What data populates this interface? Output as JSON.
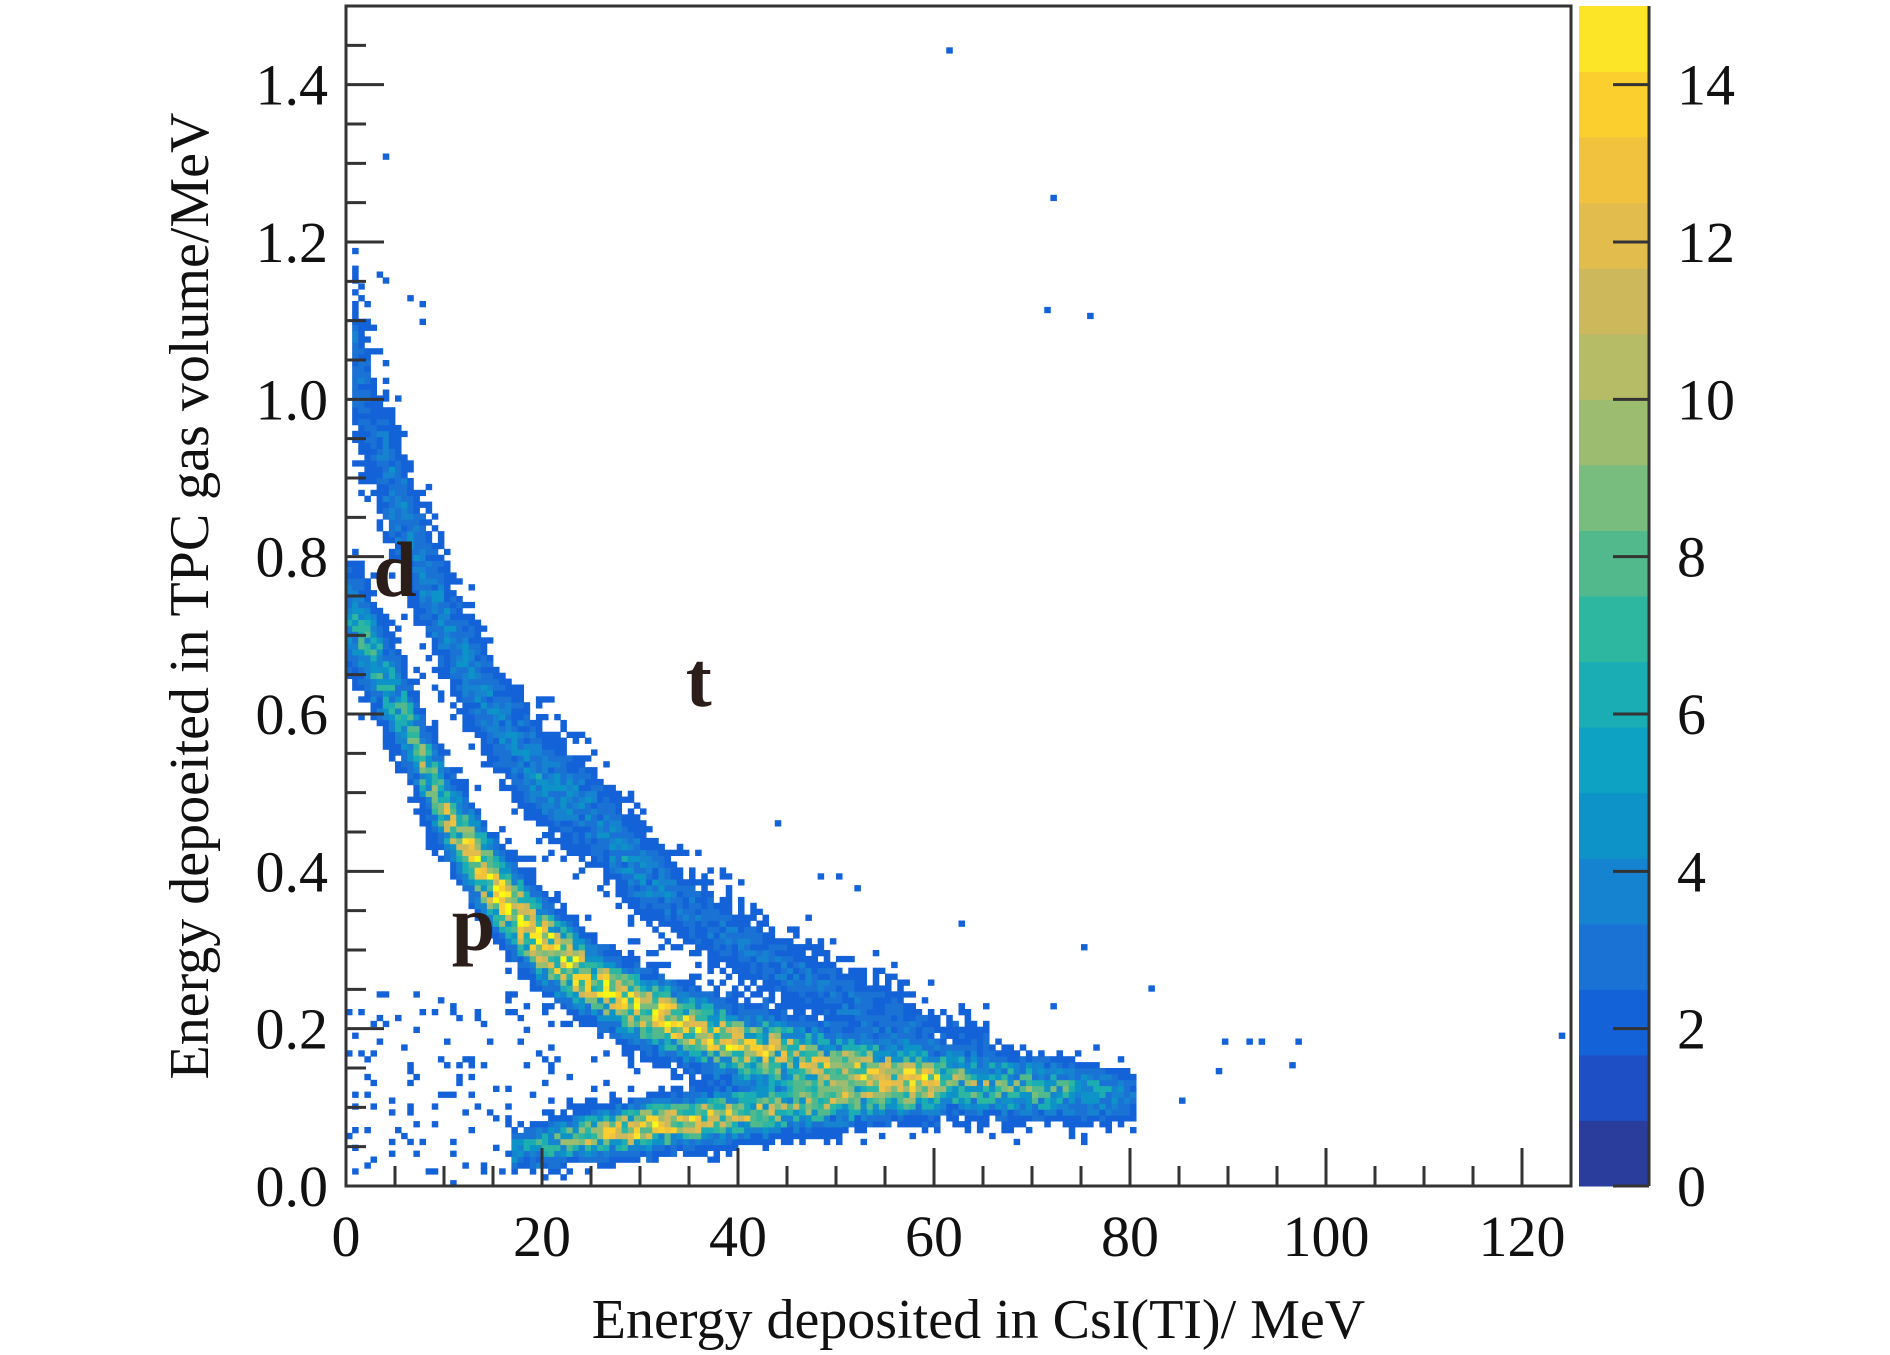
{
  "chart_data": {
    "type": "heatmap",
    "subtype": "2D histogram (dE-E particle identification)",
    "title": "",
    "xlabel": "Energy deposited in CsI(TI)/ MeV",
    "ylabel": "Energy depoeited in TPC gas volume/MeV",
    "xlim": [
      0,
      125
    ],
    "ylim": [
      0,
      1.5
    ],
    "xbins": 200,
    "ybins": 200,
    "x_ticks": [
      0,
      20,
      40,
      60,
      80,
      100,
      120
    ],
    "x_tick_labels": [
      "0",
      "20",
      "40",
      "60",
      "80",
      "100",
      "120"
    ],
    "x_minor_step": 5,
    "y_ticks": [
      0.0,
      0.2,
      0.4,
      0.6,
      0.8,
      1.0,
      1.2,
      1.4
    ],
    "y_tick_labels": [
      "0.0",
      "0.2",
      "0.4",
      "0.6",
      "0.8",
      "1.0",
      "1.2",
      "1.4"
    ],
    "y_minor_step": 0.05,
    "grid": false,
    "colorbar": {
      "range": [
        0,
        15
      ],
      "ticks": [
        0,
        2,
        4,
        6,
        8,
        10,
        12,
        14
      ],
      "tick_labels": [
        "0",
        "2",
        "4",
        "6",
        "8",
        "10",
        "12",
        "14"
      ],
      "placement": "right",
      "palette": [
        "#2a3c9c",
        "#1e4fc4",
        "#1462d8",
        "#1a73d4",
        "#1683d0",
        "#0d93c8",
        "#0da2c4",
        "#1aadb4",
        "#2db6a0",
        "#52b98c",
        "#78bd7e",
        "#9cbd70",
        "#b6bc66",
        "#cdb95c",
        "#e2bd4e",
        "#f0c23e",
        "#fbd02e",
        "#fbe526",
        "#f8fa14"
      ]
    },
    "annotations": [
      {
        "text": "d",
        "x": 5,
        "y": 0.75
      },
      {
        "text": "t",
        "x": 36,
        "y": 0.61
      },
      {
        "text": "p",
        "x": 13,
        "y": 0.3
      }
    ],
    "bands": [
      {
        "name": "p",
        "ridge_x": [
          0.5,
          2,
          5,
          10,
          15,
          20,
          25,
          30,
          40,
          50,
          60,
          70,
          78,
          80
        ],
        "ridge_y": [
          0.72,
          0.69,
          0.62,
          0.48,
          0.38,
          0.31,
          0.26,
          0.225,
          0.18,
          0.155,
          0.137,
          0.125,
          0.115,
          0.113
        ],
        "half_width_y": [
          0.04,
          0.04,
          0.035,
          0.03,
          0.03,
          0.028,
          0.026,
          0.025,
          0.025,
          0.024,
          0.024,
          0.022,
          0.02,
          0.02
        ],
        "peak_count": [
          4,
          5,
          5,
          8,
          11,
          12,
          11,
          11,
          10,
          8,
          7,
          6,
          4,
          2
        ]
      },
      {
        "name": "d",
        "ridge_x": [
          1,
          3,
          5,
          8,
          10,
          15,
          20,
          25,
          30,
          35,
          40,
          45,
          50,
          55,
          60,
          65
        ],
        "ridge_y": [
          1.05,
          0.95,
          0.88,
          0.78,
          0.72,
          0.6,
          0.52,
          0.47,
          0.4,
          0.35,
          0.31,
          0.275,
          0.245,
          0.22,
          0.2,
          0.185
        ],
        "half_width_y": [
          0.06,
          0.05,
          0.05,
          0.045,
          0.045,
          0.04,
          0.04,
          0.035,
          0.035,
          0.03,
          0.03,
          0.028,
          0.026,
          0.025,
          0.024,
          0.022
        ],
        "peak_count": [
          2,
          2,
          3,
          3,
          3,
          3,
          3,
          3,
          3,
          2,
          2,
          2,
          2,
          2,
          1,
          1
        ]
      },
      {
        "name": "lower band",
        "ridge_x": [
          17,
          20,
          25,
          30,
          35,
          40,
          45,
          50,
          55,
          60
        ],
        "ridge_y": [
          0.045,
          0.052,
          0.065,
          0.075,
          0.083,
          0.092,
          0.1,
          0.11,
          0.118,
          0.125
        ],
        "half_width_y": [
          0.015,
          0.016,
          0.016,
          0.017,
          0.018,
          0.018,
          0.02,
          0.02,
          0.02,
          0.02
        ],
        "peak_count": [
          3,
          5,
          9,
          11,
          10,
          9,
          7,
          6,
          5,
          4
        ]
      }
    ],
    "background_region": {
      "x": [
        0,
        45
      ],
      "y": [
        0.02,
        0.25
      ],
      "count": 1,
      "density": 0.28
    },
    "outlier_bins": [
      [
        61.6,
        1.44,
        1
      ],
      [
        72.0,
        1.255,
        1
      ],
      [
        71.4,
        1.112,
        1
      ],
      [
        75.8,
        1.105,
        1
      ],
      [
        3.8,
        1.31,
        1
      ],
      [
        3.6,
        1.16,
        1
      ],
      [
        4.2,
        1.15,
        1
      ],
      [
        6.5,
        1.13,
        1
      ],
      [
        7.5,
        1.12,
        1
      ],
      [
        7.8,
        1.1,
        1
      ],
      [
        89.5,
        0.184,
        1
      ],
      [
        92.0,
        0.184,
        1
      ],
      [
        93.2,
        0.184,
        1
      ],
      [
        96.9,
        0.184,
        1
      ],
      [
        88.9,
        0.147,
        1
      ],
      [
        96.3,
        0.155,
        1
      ],
      [
        123.8,
        0.192,
        1
      ],
      [
        85.0,
        0.11,
        1
      ],
      [
        82.0,
        0.25,
        1
      ],
      [
        75.5,
        0.3,
        1
      ],
      [
        72.0,
        0.23,
        1
      ],
      [
        63.0,
        0.335,
        1
      ],
      [
        50.0,
        0.39,
        1
      ],
      [
        52.0,
        0.375,
        1
      ],
      [
        48.5,
        0.39,
        1
      ],
      [
        44.0,
        0.46,
        1
      ],
      [
        58.0,
        0.06,
        1
      ],
      [
        60.0,
        0.07,
        1
      ],
      [
        11.0,
        0.005,
        1
      ],
      [
        20.0,
        0.035,
        1
      ]
    ]
  }
}
